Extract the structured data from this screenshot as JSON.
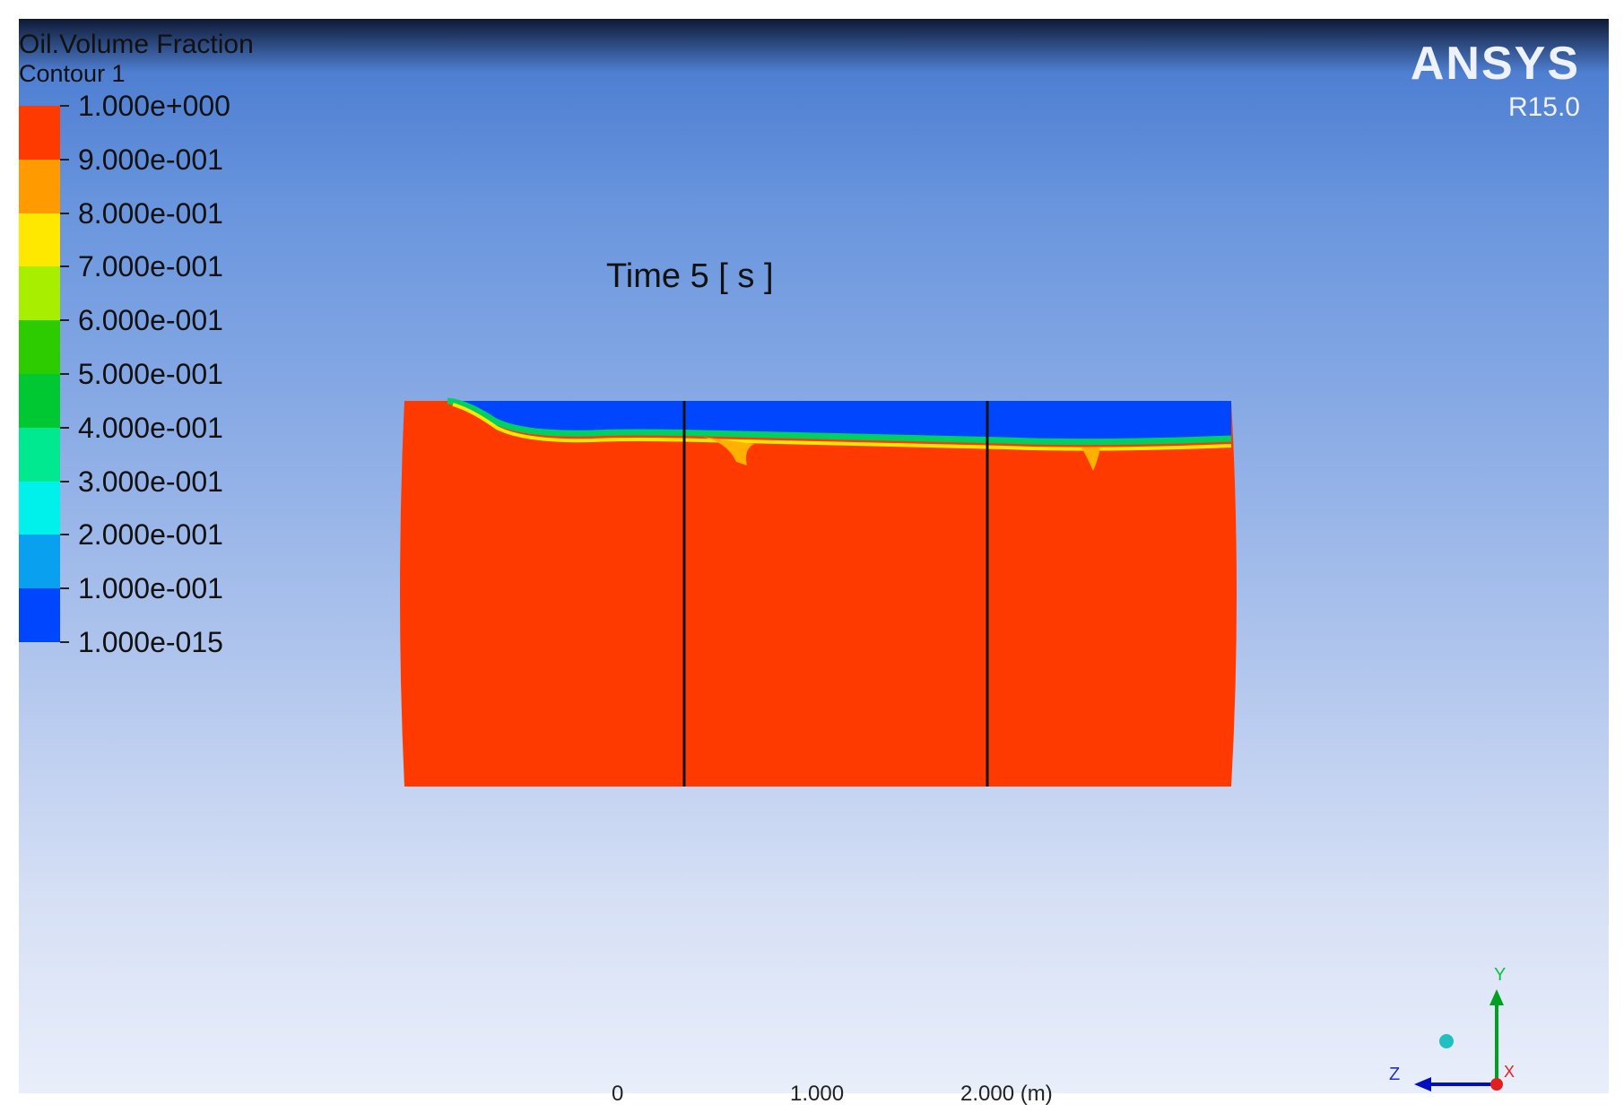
{
  "legend": {
    "title": "Oil.Volume Fraction",
    "subtitle": "Contour 1",
    "labels": [
      "1.000e+000",
      "9.000e-001",
      "8.000e-001",
      "7.000e-001",
      "6.000e-001",
      "5.000e-001",
      "4.000e-001",
      "3.000e-001",
      "2.000e-001",
      "1.000e-001",
      "1.000e-015"
    ],
    "colors": [
      "#ff3a00",
      "#ff9a00",
      "#ffe800",
      "#a8ee00",
      "#2ccc00",
      "#00c832",
      "#00e890",
      "#00f0ec",
      "#0aa0f0",
      "#0046ff"
    ]
  },
  "logo": {
    "name": "ANSYS",
    "version": "R15.0"
  },
  "time_label": "Time 5 [ s ]",
  "scale_bar": {
    "labels": [
      "0",
      "1.000",
      "2.000 (m)"
    ]
  },
  "axes": {
    "y": "Y",
    "z": "Z",
    "x": "X"
  }
}
